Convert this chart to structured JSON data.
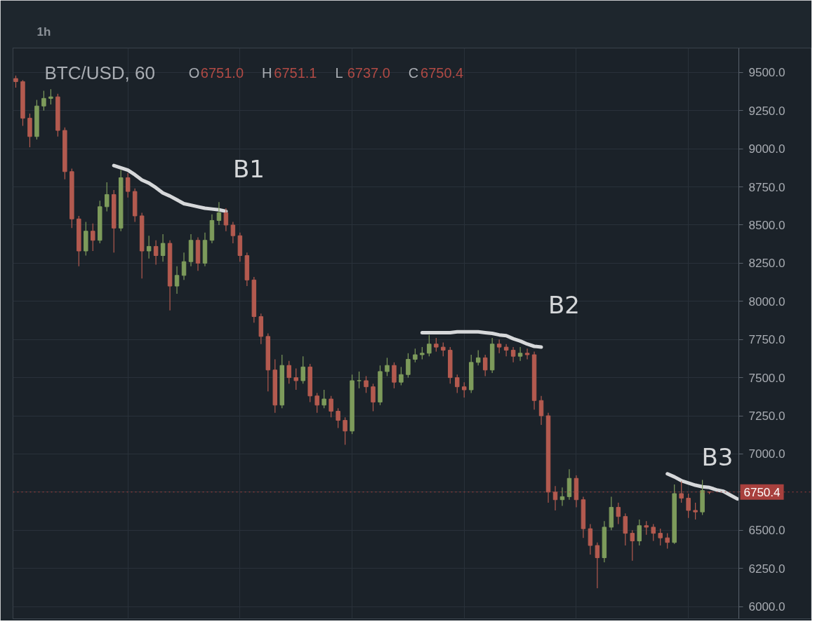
{
  "chart_data": {
    "type": "candlestick",
    "title": "BTC/USD, 60",
    "annotations": [
      "1h",
      "O",
      "6751.0",
      "H",
      "6751.1",
      "L",
      "6737.0",
      "C",
      "6750.4"
    ],
    "categories": [
      null,
      null,
      null,
      null,
      null,
      null,
      null,
      null,
      null,
      null,
      null,
      null,
      null,
      null,
      null,
      null,
      null,
      null,
      null,
      null,
      null,
      null,
      null,
      null,
      null,
      null,
      null,
      null,
      null,
      null,
      null,
      null,
      null,
      null,
      null,
      null,
      null,
      null,
      null,
      null,
      null,
      null,
      null,
      null,
      null,
      null,
      null,
      null,
      null,
      null,
      null,
      null,
      null,
      null,
      null,
      null,
      null,
      null,
      null,
      null,
      null,
      null,
      null,
      null,
      null,
      null,
      null,
      null,
      null,
      null,
      null,
      null,
      null,
      null,
      null,
      null,
      null,
      null,
      null,
      null,
      null,
      null,
      null,
      null,
      null,
      null,
      null,
      null,
      null,
      null,
      null,
      null,
      null,
      null,
      null,
      null,
      null,
      null,
      null,
      null,
      null,
      null,
      null,
      null
    ],
    "ohlc": [
      [
        9460,
        9480,
        9400,
        9440
      ],
      [
        9440,
        9450,
        9150,
        9200
      ],
      [
        9200,
        9230,
        9010,
        9080
      ],
      [
        9080,
        9320,
        9060,
        9280
      ],
      [
        9280,
        9380,
        9250,
        9330
      ],
      [
        9330,
        9390,
        9290,
        9340
      ],
      [
        9340,
        9360,
        9080,
        9120
      ],
      [
        9120,
        9140,
        8800,
        8850
      ],
      [
        8850,
        8870,
        8480,
        8540
      ],
      [
        8540,
        8560,
        8230,
        8330
      ],
      [
        8330,
        8520,
        8300,
        8460
      ],
      [
        8460,
        8510,
        8330,
        8400
      ],
      [
        8400,
        8660,
        8380,
        8620
      ],
      [
        8620,
        8780,
        8590,
        8700
      ],
      [
        8700,
        8730,
        8320,
        8480
      ],
      [
        8480,
        8860,
        8460,
        8810
      ],
      [
        8810,
        8840,
        8680,
        8720
      ],
      [
        8720,
        8740,
        8520,
        8560
      ],
      [
        8560,
        8580,
        8150,
        8330
      ],
      [
        8330,
        8430,
        8280,
        8360
      ],
      [
        8360,
        8400,
        8240,
        8300
      ],
      [
        8300,
        8440,
        8260,
        8380
      ],
      [
        8380,
        8400,
        7940,
        8100
      ],
      [
        8100,
        8230,
        8050,
        8170
      ],
      [
        8170,
        8320,
        8140,
        8260
      ],
      [
        8260,
        8440,
        8230,
        8400
      ],
      [
        8400,
        8420,
        8200,
        8250
      ],
      [
        8250,
        8450,
        8230,
        8400
      ],
      [
        8400,
        8570,
        8380,
        8530
      ],
      [
        8530,
        8650,
        8500,
        8580
      ],
      [
        8580,
        8610,
        8460,
        8500
      ],
      [
        8500,
        8520,
        8380,
        8430
      ],
      [
        8430,
        8450,
        8260,
        8300
      ],
      [
        8300,
        8320,
        8100,
        8140
      ],
      [
        8140,
        8160,
        7860,
        7900
      ],
      [
        7900,
        7920,
        7720,
        7770
      ],
      [
        7770,
        7790,
        7410,
        7550
      ],
      [
        7550,
        7620,
        7270,
        7320
      ],
      [
        7320,
        7650,
        7300,
        7580
      ],
      [
        7580,
        7610,
        7460,
        7500
      ],
      [
        7500,
        7560,
        7420,
        7480
      ],
      [
        7480,
        7640,
        7460,
        7570
      ],
      [
        7570,
        7590,
        7340,
        7380
      ],
      [
        7380,
        7400,
        7270,
        7320
      ],
      [
        7320,
        7420,
        7300,
        7360
      ],
      [
        7360,
        7380,
        7240,
        7280
      ],
      [
        7280,
        7300,
        7170,
        7220
      ],
      [
        7220,
        7240,
        7060,
        7150
      ],
      [
        7150,
        7520,
        7130,
        7480
      ],
      [
        7480,
        7540,
        7430,
        7480
      ],
      [
        7480,
        7510,
        7400,
        7440
      ],
      [
        7440,
        7460,
        7280,
        7340
      ],
      [
        7340,
        7580,
        7320,
        7540
      ],
      [
        7540,
        7630,
        7510,
        7580
      ],
      [
        7580,
        7600,
        7430,
        7470
      ],
      [
        7470,
        7570,
        7450,
        7520
      ],
      [
        7520,
        7660,
        7500,
        7620
      ],
      [
        7620,
        7690,
        7600,
        7650
      ],
      [
        7650,
        7700,
        7620,
        7660
      ],
      [
        7660,
        7780,
        7640,
        7720
      ],
      [
        7720,
        7760,
        7670,
        7700
      ],
      [
        7700,
        7730,
        7640,
        7680
      ],
      [
        7680,
        7700,
        7460,
        7500
      ],
      [
        7500,
        7520,
        7400,
        7440
      ],
      [
        7440,
        7470,
        7370,
        7420
      ],
      [
        7420,
        7650,
        7400,
        7600
      ],
      [
        7600,
        7680,
        7580,
        7630
      ],
      [
        7630,
        7650,
        7510,
        7550
      ],
      [
        7550,
        7760,
        7530,
        7720
      ],
      [
        7720,
        7750,
        7660,
        7700
      ],
      [
        7700,
        7720,
        7640,
        7680
      ],
      [
        7680,
        7700,
        7600,
        7640
      ],
      [
        7640,
        7700,
        7610,
        7660
      ],
      [
        7660,
        7690,
        7620,
        7650
      ],
      [
        7650,
        7670,
        7290,
        7350
      ],
      [
        7350,
        7380,
        7190,
        7250
      ],
      [
        7250,
        7270,
        6680,
        6750
      ],
      [
        6750,
        6790,
        6630,
        6700
      ],
      [
        6700,
        6780,
        6660,
        6720
      ],
      [
        6720,
        6900,
        6700,
        6840
      ],
      [
        6840,
        6860,
        6650,
        6700
      ],
      [
        6700,
        6720,
        6450,
        6510
      ],
      [
        6510,
        6540,
        6340,
        6400
      ],
      [
        6400,
        6420,
        6120,
        6320
      ],
      [
        6320,
        6560,
        6290,
        6520
      ],
      [
        6520,
        6720,
        6500,
        6650
      ],
      [
        6650,
        6680,
        6540,
        6590
      ],
      [
        6590,
        6610,
        6400,
        6480
      ],
      [
        6480,
        6500,
        6300,
        6430
      ],
      [
        6430,
        6570,
        6400,
        6530
      ],
      [
        6530,
        6560,
        6470,
        6520
      ],
      [
        6520,
        6540,
        6430,
        6480
      ],
      [
        6480,
        6510,
        6400,
        6450
      ],
      [
        6450,
        6480,
        6380,
        6420
      ],
      [
        6420,
        6800,
        6410,
        6740
      ],
      [
        6740,
        6820,
        6680,
        6710
      ],
      [
        6710,
        6740,
        6580,
        6630
      ],
      [
        6630,
        6680,
        6570,
        6620
      ],
      [
        6620,
        6830,
        6600,
        6760
      ],
      [
        6751.0,
        6751.1,
        6737.0,
        6750.4
      ],
      null,
      null,
      null,
      null
    ],
    "colors": [
      "#b35a4f",
      "#b35a4f",
      "#b35a4f",
      "#7d9b5b",
      "#7d9b5b",
      "#7d9b5b",
      "#b35a4f",
      "#b35a4f",
      "#b35a4f",
      "#b35a4f",
      "#7d9b5b",
      "#b35a4f",
      "#7d9b5b",
      "#7d9b5b",
      "#b35a4f",
      "#7d9b5b",
      "#b35a4f",
      "#b35a4f",
      "#b35a4f",
      "#7d9b5b",
      "#b35a4f",
      "#7d9b5b",
      "#b35a4f",
      "#7d9b5b",
      "#7d9b5b",
      "#7d9b5b",
      "#b35a4f",
      "#7d9b5b",
      "#7d9b5b",
      "#7d9b5b",
      "#b35a4f",
      "#b35a4f",
      "#b35a4f",
      "#b35a4f",
      "#b35a4f",
      "#b35a4f",
      "#b35a4f",
      "#b35a4f",
      "#7d9b5b",
      "#b35a4f",
      "#b35a4f",
      "#7d9b5b",
      "#b35a4f",
      "#b35a4f",
      "#7d9b5b",
      "#b35a4f",
      "#b35a4f",
      "#b35a4f",
      "#7d9b5b",
      "#7d9b5b",
      "#b35a4f",
      "#b35a4f",
      "#7d9b5b",
      "#7d9b5b",
      "#b35a4f",
      "#7d9b5b",
      "#7d9b5b",
      "#7d9b5b",
      "#7d9b5b",
      "#7d9b5b",
      "#b35a4f",
      "#b35a4f",
      "#b35a4f",
      "#b35a4f",
      "#b35a4f",
      "#7d9b5b",
      "#7d9b5b",
      "#b35a4f",
      "#7d9b5b",
      "#b35a4f",
      "#b35a4f",
      "#b35a4f",
      "#7d9b5b",
      "#b35a4f",
      "#b35a4f",
      "#b35a4f",
      "#b35a4f",
      "#b35a4f",
      "#7d9b5b",
      "#7d9b5b",
      "#b35a4f",
      "#b35a4f",
      "#b35a4f",
      "#b35a4f",
      "#7d9b5b",
      "#7d9b5b",
      "#b35a4f",
      "#b35a4f",
      "#b35a4f",
      "#7d9b5b",
      "#b35a4f",
      "#b35a4f",
      "#b35a4f",
      "#b35a4f",
      "#7d9b5b",
      "#b35a4f",
      "#b35a4f",
      "#b35a4f",
      "#7d9b5b",
      "#b35a4f",
      null,
      null,
      null,
      null
    ],
    "series": [
      {
        "type": "line",
        "name": "B1",
        "color": "#d6d8da",
        "values": [
          null,
          null,
          null,
          null,
          null,
          null,
          null,
          null,
          null,
          null,
          null,
          null,
          null,
          null,
          8890,
          8875,
          8860,
          8830,
          8795,
          8775,
          8745,
          8710,
          8690,
          8665,
          8640,
          8630,
          8620,
          8610,
          8605,
          8600,
          8590,
          null,
          null,
          null,
          null,
          null,
          null,
          null,
          null,
          null,
          null,
          null,
          null,
          null,
          null,
          null,
          null,
          null,
          null,
          null,
          null,
          null,
          null,
          null,
          null,
          null,
          null,
          null,
          null,
          null,
          null,
          null,
          null,
          null,
          null,
          null,
          null,
          null,
          null,
          null,
          null,
          null,
          null,
          null,
          null,
          null,
          null,
          null,
          null,
          null,
          null,
          null,
          null,
          null,
          null,
          null,
          null,
          null,
          null,
          null,
          null,
          null,
          null,
          null,
          null,
          null,
          null,
          null,
          null,
          null,
          null,
          null,
          null,
          null
        ]
      },
      {
        "type": "line",
        "name": "B2",
        "color": "#d6d8da",
        "values": [
          null,
          null,
          null,
          null,
          null,
          null,
          null,
          null,
          null,
          null,
          null,
          null,
          null,
          null,
          null,
          null,
          null,
          null,
          null,
          null,
          null,
          null,
          null,
          null,
          null,
          null,
          null,
          null,
          null,
          null,
          null,
          null,
          null,
          null,
          null,
          null,
          null,
          null,
          null,
          null,
          null,
          null,
          null,
          null,
          null,
          null,
          null,
          null,
          null,
          null,
          null,
          null,
          null,
          null,
          null,
          null,
          null,
          null,
          7795,
          7795,
          7795,
          7795,
          7795,
          7800,
          7800,
          7800,
          7800,
          7795,
          7790,
          7780,
          7775,
          7755,
          7740,
          7720,
          7705,
          7700,
          null,
          null,
          null,
          null,
          null,
          null,
          null,
          null,
          null,
          null,
          null,
          null,
          null,
          null,
          null,
          null,
          null,
          null,
          null,
          null,
          null,
          null,
          null,
          null,
          null,
          null,
          null,
          null
        ]
      },
      {
        "type": "line",
        "name": "B3",
        "color": "#d6d8da",
        "values": [
          null,
          null,
          null,
          null,
          null,
          null,
          null,
          null,
          null,
          null,
          null,
          null,
          null,
          null,
          null,
          null,
          null,
          null,
          null,
          null,
          null,
          null,
          null,
          null,
          null,
          null,
          null,
          null,
          null,
          null,
          null,
          null,
          null,
          null,
          null,
          null,
          null,
          null,
          null,
          null,
          null,
          null,
          null,
          null,
          null,
          null,
          null,
          null,
          null,
          null,
          null,
          null,
          null,
          null,
          null,
          null,
          null,
          null,
          null,
          null,
          null,
          null,
          null,
          null,
          null,
          null,
          null,
          null,
          null,
          null,
          null,
          null,
          null,
          null,
          null,
          null,
          null,
          null,
          null,
          null,
          null,
          null,
          null,
          null,
          null,
          null,
          null,
          null,
          null,
          null,
          null,
          null,
          null,
          6870,
          6850,
          6825,
          6810,
          6795,
          6785,
          6780,
          6765,
          6755,
          6730,
          6705
        ]
      }
    ],
    "ylim": [
      5920,
      9660
    ],
    "yticks": [
      {
        "value": 6000,
        "label": "6000.0"
      },
      {
        "value": 6250,
        "label": "6250.0"
      },
      {
        "value": 6500,
        "label": "6500.0"
      },
      {
        "value": 6750,
        "label": null
      },
      {
        "value": 7000,
        "label": "7000.0"
      },
      {
        "value": 7250,
        "label": "7250.0"
      },
      {
        "value": 7500,
        "label": "7500.0"
      },
      {
        "value": 7750,
        "label": "7750.0"
      },
      {
        "value": 8000,
        "label": "8000.0"
      },
      {
        "value": 8250,
        "label": "8250.0"
      },
      {
        "value": 8500,
        "label": "8500.0"
      },
      {
        "value": 8750,
        "label": "8750.0"
      },
      {
        "value": 9000,
        "label": "9000.0"
      },
      {
        "value": 9250,
        "label": "9250.0"
      },
      {
        "value": 9500,
        "label": "9500.0"
      }
    ],
    "ref_lines": [
      {
        "axis": "y",
        "value": 6750.4,
        "label": "6750.4",
        "color": "#a8403d",
        "line_style": "dotted"
      }
    ],
    "grid": true,
    "tick_labels": "y"
  }
}
